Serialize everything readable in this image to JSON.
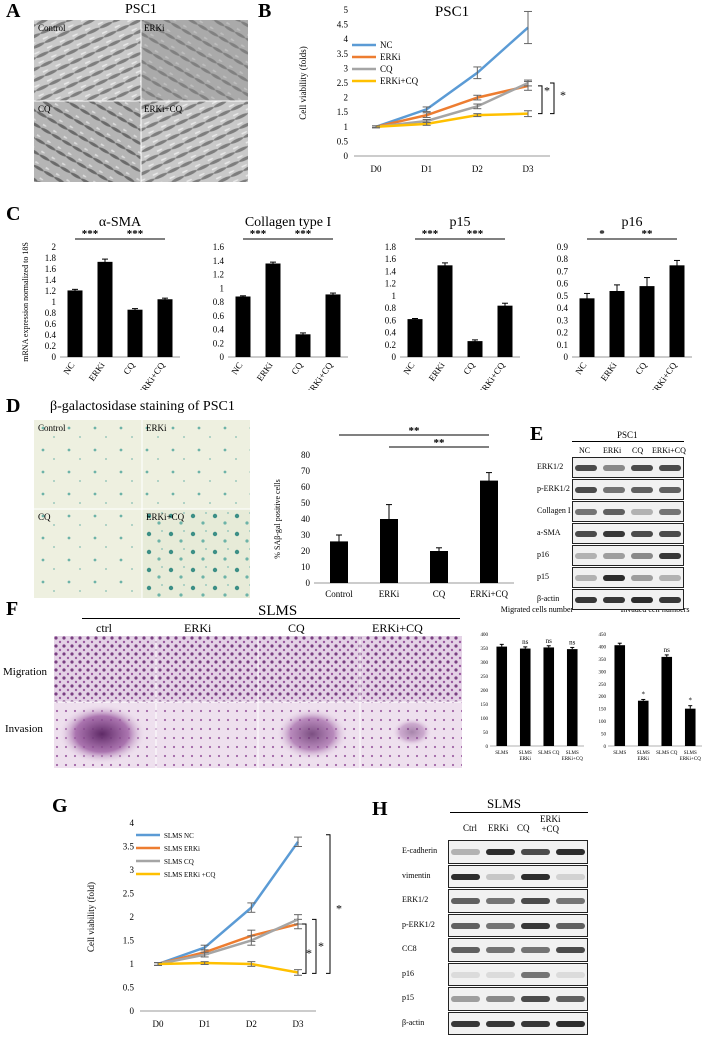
{
  "panels": {
    "A": {
      "letter": "A",
      "title": "PSC1",
      "labels": [
        "Control",
        "ERKi",
        "CQ",
        "ERKi+CQ"
      ]
    },
    "B": {
      "letter": "B"
    },
    "C": {
      "letter": "C"
    },
    "D": {
      "letter": "D",
      "title": "β-galactosidase staining of PSC1",
      "labels": [
        "Control",
        "ERKi",
        "CQ",
        "ERKi+CQ"
      ]
    },
    "E": {
      "letter": "E",
      "header": "PSC1",
      "lanes": [
        "NC",
        "ERKi",
        "CQ",
        "ERKi+CQ"
      ],
      "rows": [
        "ERK1/2",
        "p-ERK1/2",
        "Collagen I",
        "a-SMA",
        "p16",
        "p15",
        "β-actin"
      ]
    },
    "F": {
      "letter": "F",
      "title": "SLMS",
      "cols": [
        "ctrl",
        "ERKi",
        "CQ",
        "ERKi+CQ"
      ],
      "rows": [
        "Migration",
        "Invasion"
      ]
    },
    "G": {
      "letter": "G"
    },
    "H": {
      "letter": "H",
      "header": "SLMS",
      "lanes": [
        "Ctrl",
        "ERKi",
        "CQ",
        "ERKi\n+CQ"
      ],
      "rows": [
        "E-cadherin",
        "vimentin",
        "ERK1/2",
        "p-ERK1/2",
        "CC8",
        "p16",
        "p15",
        "β-actin"
      ]
    }
  },
  "chart_data": [
    {
      "id": "B",
      "type": "line",
      "title": "PSC1",
      "xlabel": "",
      "ylabel": "Cell viability (folds)",
      "x": [
        "D0",
        "D1",
        "D2",
        "D3"
      ],
      "ylim": [
        0,
        5
      ],
      "yticks": [
        "0",
        "0.5",
        "1",
        "1.5",
        "2",
        "2.5",
        "3",
        "3.5",
        "4",
        "4.5",
        "5"
      ],
      "legend": "top-left",
      "series": [
        {
          "name": "NC",
          "color": "#5b9bd5",
          "values": [
            1.0,
            1.6,
            2.85,
            4.4
          ],
          "err": [
            0.03,
            0.08,
            0.2,
            0.55
          ]
        },
        {
          "name": "ERKi",
          "color": "#ed7d31",
          "values": [
            1.0,
            1.4,
            2.0,
            2.4
          ],
          "err": [
            0.03,
            0.08,
            0.08,
            0.15
          ]
        },
        {
          "name": "CQ",
          "color": "#a5a5a5",
          "values": [
            1.0,
            1.2,
            1.7,
            2.5
          ],
          "err": [
            0.03,
            0.05,
            0.08,
            0.1
          ]
        },
        {
          "name": "ERKi+CQ",
          "color": "#ffc000",
          "values": [
            1.0,
            1.1,
            1.4,
            1.45
          ],
          "err": [
            0.03,
            0.05,
            0.05,
            0.1
          ]
        }
      ],
      "annotations": [
        "*",
        "*",
        "*"
      ]
    },
    {
      "id": "C1",
      "type": "bar",
      "title": "α-SMA",
      "ylabel": "mRNA expression normalized to 18S",
      "categories": [
        "NC",
        "ERKi",
        "CQ",
        "ERKi+CQ"
      ],
      "values": [
        1.21,
        1.73,
        0.86,
        1.05
      ],
      "err": [
        0.02,
        0.05,
        0.02,
        0.02
      ],
      "ylim": [
        0,
        2
      ],
      "yticks": [
        "0",
        "0.2",
        "0.4",
        "0.6",
        "0.8",
        "1",
        "1.2",
        "1.4",
        "1.6",
        "1.8",
        "2"
      ],
      "sig": [
        "***",
        "***"
      ]
    },
    {
      "id": "C2",
      "type": "bar",
      "title": "Collagen type I",
      "categories": [
        "NC",
        "ERKi",
        "CQ",
        "ERKi+CQ"
      ],
      "values": [
        0.88,
        1.36,
        0.33,
        0.91
      ],
      "err": [
        0.01,
        0.02,
        0.02,
        0.02
      ],
      "ylim": [
        0,
        1.6
      ],
      "yticks": [
        "0",
        "0.2",
        "0.4",
        "0.6",
        "0.8",
        "1",
        "1.2",
        "1.4",
        "1.6"
      ],
      "sig": [
        "***",
        "***"
      ]
    },
    {
      "id": "C3",
      "type": "bar",
      "title": "p15",
      "categories": [
        "NC",
        "ERKi",
        "CQ",
        "ERKi+CQ"
      ],
      "values": [
        0.62,
        1.5,
        0.26,
        0.84
      ],
      "err": [
        0.01,
        0.04,
        0.02,
        0.04
      ],
      "ylim": [
        0,
        1.8
      ],
      "yticks": [
        "0",
        "0.2",
        "0.4",
        "0.6",
        "0.8",
        "1",
        "1.2",
        "1.4",
        "1.6",
        "1.8"
      ],
      "sig": [
        "***",
        "***"
      ]
    },
    {
      "id": "C4",
      "type": "bar",
      "title": "p16",
      "categories": [
        "NC",
        "ERKi",
        "CQ",
        "ERKi+CQ"
      ],
      "values": [
        0.48,
        0.54,
        0.58,
        0.75
      ],
      "err": [
        0.04,
        0.05,
        0.07,
        0.04
      ],
      "ylim": [
        0,
        0.9
      ],
      "yticks": [
        "0",
        "0.1",
        "0.2",
        "0.3",
        "0.4",
        "0.5",
        "0.6",
        "0.7",
        "0.8",
        "0.9"
      ],
      "sig": [
        "*",
        "**"
      ]
    },
    {
      "id": "D",
      "type": "bar",
      "ylabel": "% SAβ-gal positive cells",
      "categories": [
        "Control",
        "ERKi",
        "CQ",
        "ERKi+CQ"
      ],
      "values": [
        26,
        40,
        20,
        64
      ],
      "err": [
        4,
        9,
        2,
        5
      ],
      "ylim": [
        0,
        80
      ],
      "yticks": [
        "0",
        "10",
        "20",
        "30",
        "40",
        "50",
        "60",
        "70",
        "80"
      ],
      "sig": [
        "**",
        "**"
      ]
    },
    {
      "id": "F1",
      "type": "bar",
      "title": "Migrated cells number",
      "categories": [
        "SLMS",
        "SLMS ERKi",
        "SLMS CQ",
        "SLMS ERKi+CQ"
      ],
      "values": [
        355,
        348,
        352,
        346
      ],
      "err": [
        8,
        6,
        6,
        6
      ],
      "ylim": [
        0,
        400
      ],
      "yticks": [
        "0",
        "50",
        "100",
        "150",
        "200",
        "250",
        "300",
        "350",
        "400"
      ],
      "sig": [
        "",
        "ns",
        "ns",
        "ns"
      ]
    },
    {
      "id": "F2",
      "type": "bar",
      "title": "Invaded cell numbers",
      "categories": [
        "SLMS",
        "SLMS ERKi",
        "SLMS CQ",
        "SLMS ERKi+CQ"
      ],
      "values": [
        405,
        182,
        358,
        150
      ],
      "err": [
        8,
        5,
        8,
        12
      ],
      "ylim": [
        0,
        450
      ],
      "yticks": [
        "0",
        "50",
        "100",
        "150",
        "200",
        "250",
        "300",
        "350",
        "400",
        "450"
      ],
      "sig": [
        "",
        "*",
        "ns",
        "*"
      ]
    },
    {
      "id": "G",
      "type": "line",
      "ylabel": "Cell viability (fold)",
      "x": [
        "D0",
        "D1",
        "D2",
        "D3"
      ],
      "ylim": [
        0,
        4
      ],
      "yticks": [
        "0",
        "0.5",
        "1",
        "1.5",
        "2",
        "2.5",
        "3",
        "3.5",
        "4"
      ],
      "legend": "top-left",
      "series": [
        {
          "name": "SLMS NC",
          "color": "#5b9bd5",
          "values": [
            1.0,
            1.35,
            2.2,
            3.6
          ],
          "err": [
            0.03,
            0.05,
            0.1,
            0.1
          ]
        },
        {
          "name": "SLMS ERKi",
          "color": "#ed7d31",
          "values": [
            1.0,
            1.25,
            1.6,
            1.85
          ],
          "err": [
            0.03,
            0.05,
            0.12,
            0.1
          ]
        },
        {
          "name": "SLMS CQ",
          "color": "#a5a5a5",
          "values": [
            1.0,
            1.2,
            1.5,
            1.95
          ],
          "err": [
            0.03,
            0.05,
            0.1,
            0.1
          ]
        },
        {
          "name": "SLMS ERKi +CQ",
          "color": "#ffc000",
          "values": [
            1.0,
            1.02,
            1.0,
            0.82
          ],
          "err": [
            0.03,
            0.03,
            0.05,
            0.06
          ]
        }
      ],
      "annotations": [
        "*",
        "*",
        "*"
      ]
    }
  ]
}
